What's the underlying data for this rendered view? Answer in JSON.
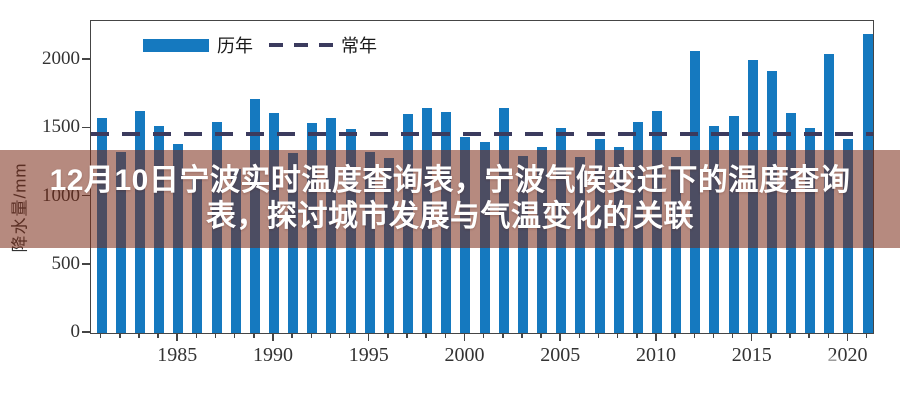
{
  "title_overlay": {
    "line1": "12月10日宁波实时温度查询表，宁波气候变迁下的温度查询",
    "line2": "表，探讨城市发展与气温变化的关联"
  },
  "chart_data": {
    "type": "bar",
    "title": "",
    "xlabel": "",
    "ylabel": "降水量/mm",
    "ylim": [
      0,
      2288
    ],
    "yticks": [
      0,
      500,
      1000,
      1500,
      2000
    ],
    "xticks": [
      1985,
      1990,
      1995,
      2000,
      2005,
      2010,
      2015,
      2020
    ],
    "grid": false,
    "legend_position": "top-inside",
    "categories": [
      1981,
      1982,
      1983,
      1984,
      1985,
      1986,
      1987,
      1988,
      1989,
      1990,
      1991,
      1992,
      1993,
      1994,
      1995,
      1996,
      1997,
      1998,
      1999,
      2000,
      2001,
      2002,
      2003,
      2004,
      2005,
      2006,
      2007,
      2008,
      2009,
      2010,
      2011,
      2012,
      2013,
      2014,
      2015,
      2016,
      2017,
      2018,
      2019,
      2020,
      2021
    ],
    "series": [
      {
        "name": "历年",
        "type": "bar",
        "color": "#1579bf",
        "values": [
          1580,
          1330,
          1630,
          1515,
          1385,
          1130,
          1550,
          1200,
          1715,
          1615,
          1320,
          1540,
          1580,
          1495,
          1330,
          1280,
          1605,
          1650,
          1620,
          1440,
          1400,
          1650,
          1300,
          1365,
          1500,
          1290,
          1425,
          1365,
          1550,
          1625,
          1290,
          2065,
          1515,
          1590,
          2000,
          1925,
          1610,
          1500,
          2045,
          1420,
          2190
        ]
      },
      {
        "name": "常年",
        "type": "dashed-line",
        "color": "#3b3b5e",
        "value": 1460
      }
    ]
  },
  "colors": {
    "bar": "#1579bf",
    "normal_line": "#3b3b5e",
    "banner_overlay": "rgba(122,42,22,0.55)",
    "banner_text": "#ffffff",
    "axis": "#454545",
    "tick_text": "#333333"
  }
}
